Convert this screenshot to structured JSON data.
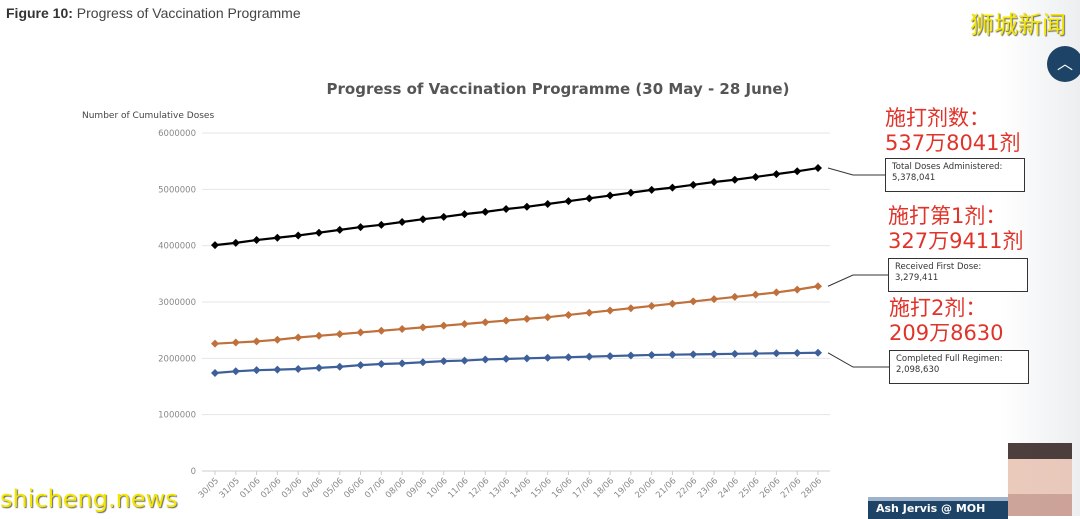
{
  "caption": {
    "label": "Figure 10:",
    "text": " Progress of Vaccination Programme"
  },
  "watermarks": {
    "cn": "狮城新闻",
    "en": "shicheng.news"
  },
  "presenter_label": "Ash Jervis @ MOH",
  "annotations_cn": {
    "total": [
      "施打剂数：",
      "537万8041剂"
    ],
    "first": [
      "施打第1剂：",
      "327万9411剂"
    ],
    "full": [
      "施打2剂：",
      "209万8630"
    ]
  },
  "chart_data": {
    "type": "line",
    "title": "Progress of Vaccination Programme (30 May - 28 June)",
    "ylabel": "Number of Cumulative Doses",
    "xlabel": "",
    "ylim": [
      0,
      6000000
    ],
    "yticks": [
      "0",
      "1000000",
      "2000000",
      "3000000",
      "4000000",
      "5000000",
      "6000000"
    ],
    "grid": true,
    "categories": [
      "30/05",
      "31/05",
      "01/06",
      "02/06",
      "03/06",
      "04/06",
      "05/06",
      "06/06",
      "07/06",
      "08/06",
      "09/06",
      "10/06",
      "11/06",
      "12/06",
      "13/06",
      "14/06",
      "15/06",
      "16/06",
      "17/06",
      "18/06",
      "19/06",
      "20/06",
      "21/06",
      "22/06",
      "23/06",
      "24/06",
      "25/06",
      "26/06",
      "27/06",
      "28/06"
    ],
    "series": [
      {
        "name": "Total Doses Administered",
        "color": "#000000",
        "label": "Total Doses Administered:",
        "final": "5,378,041",
        "values": [
          4010000,
          4050000,
          4100000,
          4140000,
          4180000,
          4230000,
          4280000,
          4330000,
          4370000,
          4420000,
          4470000,
          4510000,
          4560000,
          4600000,
          4650000,
          4690000,
          4740000,
          4790000,
          4840000,
          4890000,
          4940000,
          4990000,
          5030000,
          5080000,
          5130000,
          5170000,
          5220000,
          5270000,
          5320000,
          5378041
        ]
      },
      {
        "name": "Received First Dose",
        "color": "#c0703a",
        "label": "Received First Dose:",
        "final": "3,279,411",
        "values": [
          2260000,
          2280000,
          2300000,
          2330000,
          2370000,
          2400000,
          2430000,
          2460000,
          2490000,
          2520000,
          2550000,
          2580000,
          2610000,
          2640000,
          2670000,
          2700000,
          2730000,
          2770000,
          2810000,
          2850000,
          2890000,
          2930000,
          2970000,
          3010000,
          3050000,
          3090000,
          3130000,
          3170000,
          3220000,
          3279411
        ]
      },
      {
        "name": "Completed Full Regimen",
        "color": "#3d5f9a",
        "label": "Completed Full Regimen:",
        "final": "2,098,630",
        "values": [
          1740000,
          1770000,
          1790000,
          1800000,
          1810000,
          1830000,
          1850000,
          1880000,
          1900000,
          1910000,
          1930000,
          1950000,
          1960000,
          1980000,
          1990000,
          2000000,
          2010000,
          2020000,
          2030000,
          2040000,
          2050000,
          2060000,
          2065000,
          2070000,
          2075000,
          2080000,
          2085000,
          2090000,
          2094000,
          2098630
        ]
      }
    ]
  }
}
